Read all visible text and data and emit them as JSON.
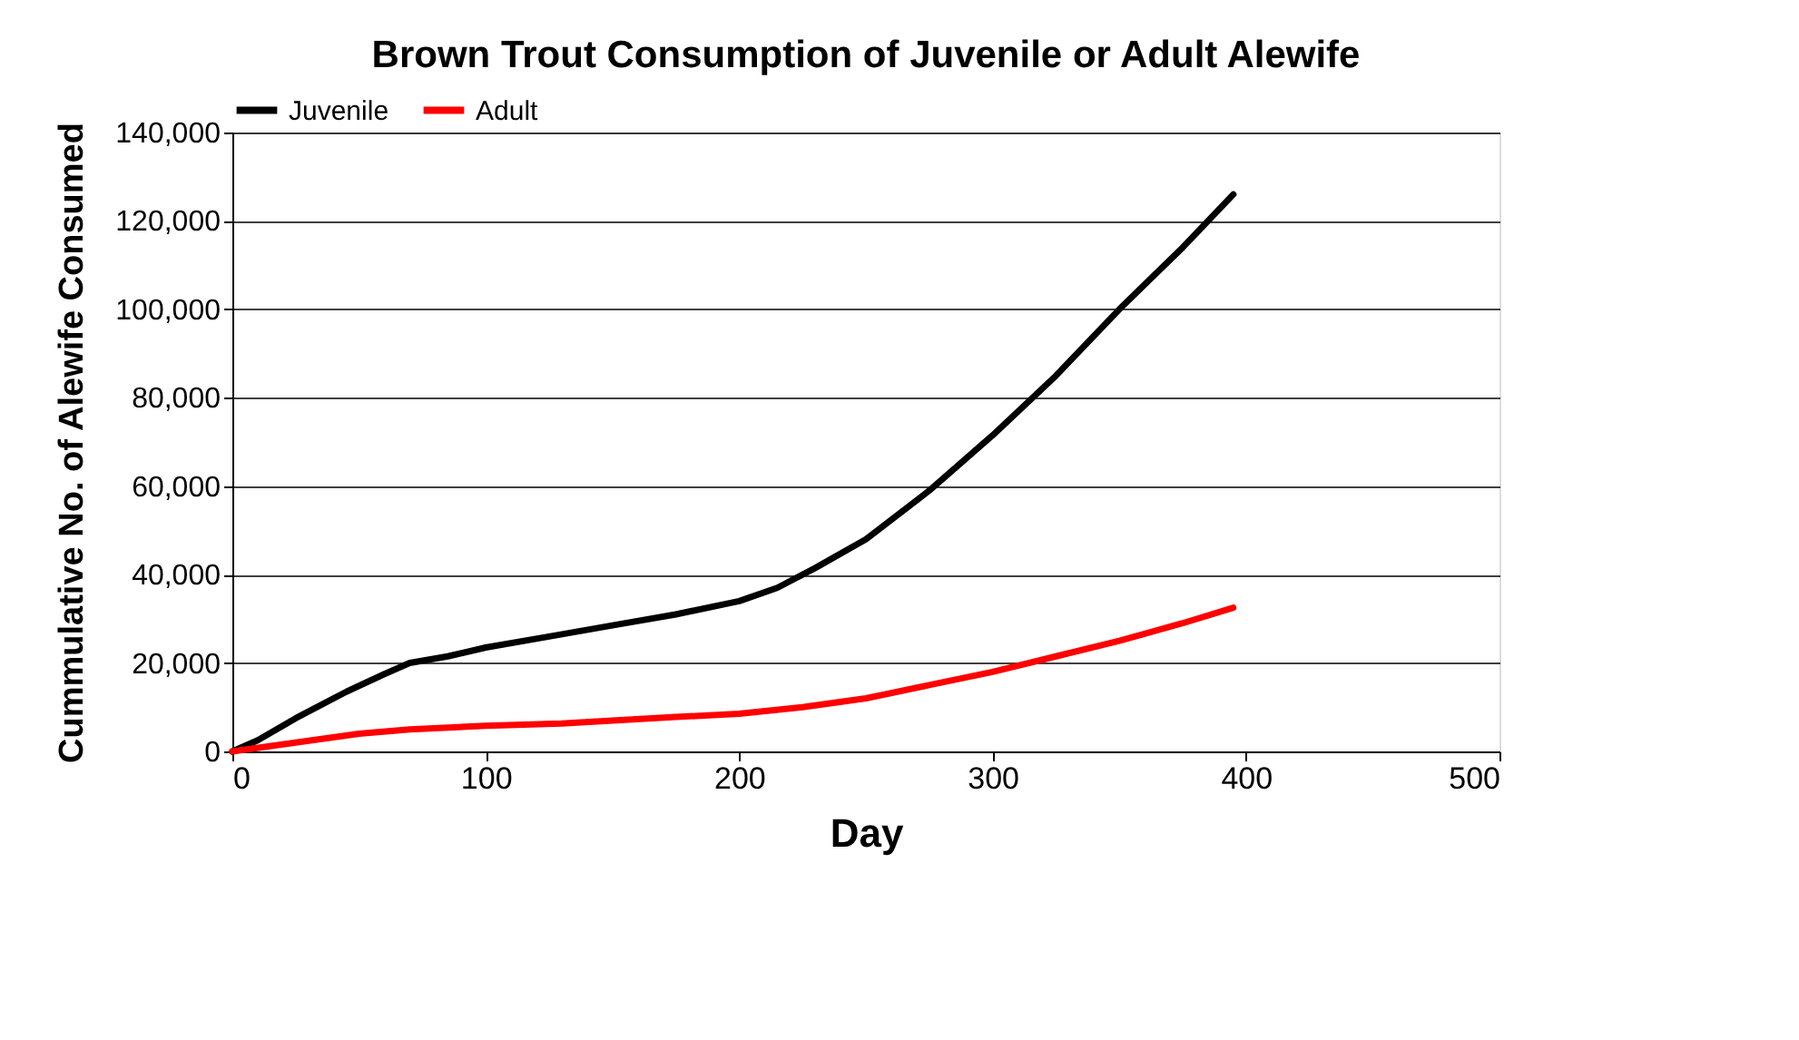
{
  "chart_data": {
    "type": "line",
    "title": "Brown Trout Consumption of Juvenile or Adult Alewife",
    "xlabel": "Day",
    "ylabel": "Cummulative No. of Alewife Consumed",
    "xlim": [
      0,
      500
    ],
    "xticks": [
      0,
      100,
      200,
      300,
      400,
      500
    ],
    "ylim": [
      0,
      140000
    ],
    "yticks": [
      {
        "value": 0,
        "label": "0"
      },
      {
        "value": 20000,
        "label": "20,000"
      },
      {
        "value": 40000,
        "label": "40,000"
      },
      {
        "value": 60000,
        "label": "60,000"
      },
      {
        "value": 80000,
        "label": "80,000"
      },
      {
        "value": 100000,
        "label": "100,000"
      },
      {
        "value": 120000,
        "label": "120,000"
      },
      {
        "value": 140000,
        "label": "140,000"
      }
    ],
    "grid": "y",
    "legend": "top",
    "marker": "none",
    "line_style": "solid",
    "series": [
      {
        "name": "Juvenile",
        "color": "#000000",
        "x": [
          0,
          10,
          25,
          45,
          60,
          70,
          85,
          100,
          125,
          150,
          175,
          200,
          215,
          230,
          250,
          275,
          300,
          325,
          350,
          375,
          395
        ],
        "values": [
          0,
          2500,
          7500,
          13500,
          17500,
          20000,
          21500,
          23500,
          26000,
          28500,
          31000,
          34000,
          37000,
          41500,
          48000,
          59000,
          71500,
          85000,
          100000,
          114000,
          126000
        ]
      },
      {
        "name": "Adult",
        "color": "#ff0000",
        "x": [
          0,
          25,
          50,
          70,
          100,
          130,
          150,
          175,
          200,
          225,
          250,
          275,
          300,
          325,
          350,
          375,
          395
        ],
        "values": [
          0,
          2000,
          4000,
          5000,
          5800,
          6300,
          7000,
          7800,
          8500,
          10000,
          12000,
          15000,
          18000,
          21500,
          25000,
          29000,
          32500
        ]
      }
    ]
  }
}
